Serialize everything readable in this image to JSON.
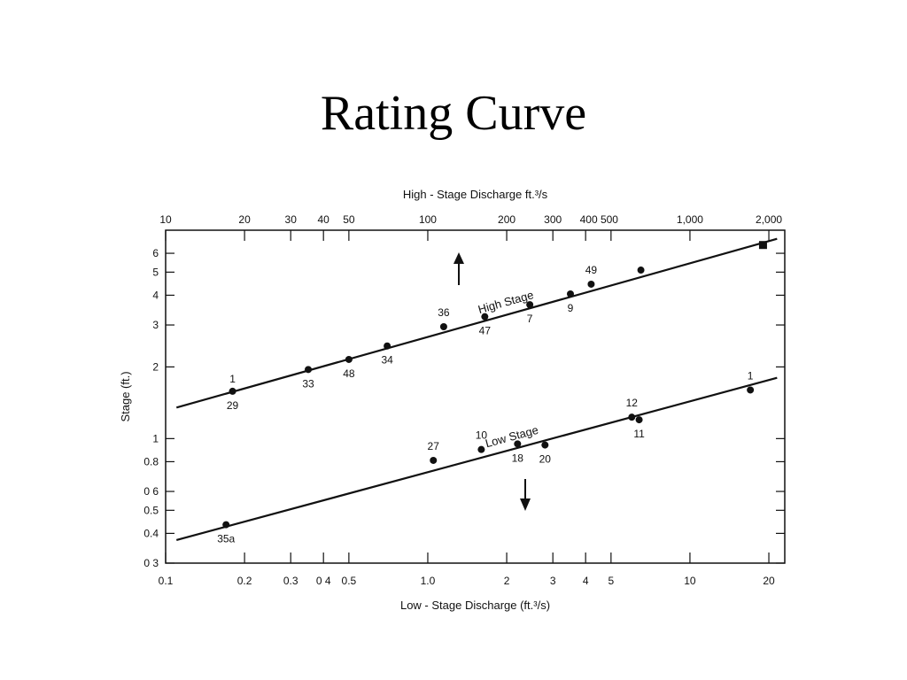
{
  "slide": {
    "title": "Rating Curve"
  },
  "chart_data": {
    "type": "scatter",
    "top_axis": {
      "label": "High - Stage Discharge ft.³/s",
      "scale": "log",
      "range": [
        10,
        2300
      ],
      "ticks": [
        10,
        20,
        30,
        40,
        50,
        100,
        200,
        300,
        400,
        500,
        1000,
        2000
      ],
      "tick_labels": [
        "10",
        "20",
        "30",
        "40",
        "50",
        "100",
        "200",
        "300",
        "400 500",
        "1,000",
        "2,000"
      ]
    },
    "bottom_axis": {
      "label": "Low - Stage Discharge (ft.³/s)",
      "scale": "log",
      "range": [
        0.1,
        23
      ],
      "ticks": [
        0.1,
        0.2,
        0.3,
        0.4,
        0.5,
        1.0,
        2,
        3,
        4,
        5,
        10,
        20
      ],
      "tick_labels": [
        "0.1",
        "0.2",
        "0.3",
        "0 4",
        "0.5",
        "1.0",
        "2",
        "3",
        "4",
        "5",
        "10",
        "20"
      ]
    },
    "y_axis": {
      "label": "Stage (ft.)",
      "scale": "log",
      "range": [
        0.3,
        7.5
      ],
      "ticks": [
        0.3,
        0.4,
        0.5,
        0.6,
        0.8,
        1,
        2,
        3,
        4,
        5,
        6
      ],
      "tick_labels": [
        "0 3",
        "0.4",
        "0.5",
        "0 6",
        "0.8",
        "1",
        "2",
        "3",
        "4",
        "5",
        "6"
      ]
    },
    "grid": false,
    "series": [
      {
        "name": "High Stage",
        "x_axis": "top",
        "direction": "up",
        "points": [
          {
            "x": 18,
            "y": 1.58,
            "label": "29",
            "label2": "1"
          },
          {
            "x": 35,
            "y": 1.95,
            "label": "33"
          },
          {
            "x": 50,
            "y": 2.15,
            "label": "48"
          },
          {
            "x": 70,
            "y": 2.45,
            "label": "34"
          },
          {
            "x": 115,
            "y": 2.95,
            "label": "36"
          },
          {
            "x": 165,
            "y": 3.25,
            "label": "47"
          },
          {
            "x": 245,
            "y": 3.65,
            "label": "7"
          },
          {
            "x": 350,
            "y": 4.05,
            "label": "9"
          },
          {
            "x": 420,
            "y": 4.45,
            "label": "49"
          },
          {
            "x": 650,
            "y": 5.1,
            "label": ""
          },
          {
            "x": 1900,
            "y": 6.5,
            "label": "",
            "marker": "square"
          }
        ],
        "line": {
          "x": [
            11,
            2150
          ],
          "y": [
            1.35,
            6.9
          ]
        }
      },
      {
        "name": "Low Stage",
        "x_axis": "bottom",
        "direction": "down",
        "points": [
          {
            "x": 0.17,
            "y": 0.435,
            "label": "35a"
          },
          {
            "x": 1.05,
            "y": 0.81,
            "label": "27"
          },
          {
            "x": 1.6,
            "y": 0.9,
            "label": "10"
          },
          {
            "x": 2.2,
            "y": 0.95,
            "label": "18"
          },
          {
            "x": 2.8,
            "y": 0.94,
            "label": "20"
          },
          {
            "x": 6.0,
            "y": 1.23,
            "label": "12"
          },
          {
            "x": 6.4,
            "y": 1.2,
            "label": "11"
          },
          {
            "x": 17,
            "y": 1.6,
            "label": "1"
          }
        ],
        "line": {
          "x": [
            0.11,
            21.5
          ],
          "y": [
            0.375,
            1.8
          ]
        }
      }
    ]
  }
}
